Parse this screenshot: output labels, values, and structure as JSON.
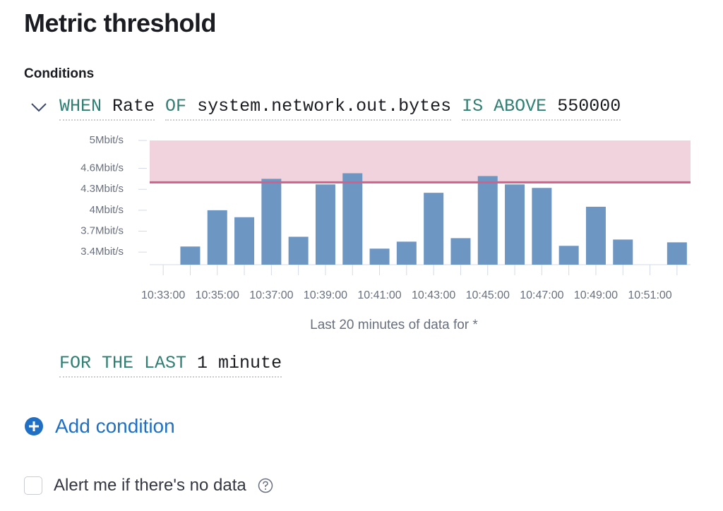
{
  "header": {
    "title": "Metric threshold"
  },
  "section_label": "Conditions",
  "condition": {
    "when": "WHEN",
    "aggregation": "Rate",
    "of": "OF",
    "metric": "system.network.out.bytes",
    "comparator": "IS ABOVE",
    "threshold": "550000"
  },
  "chart_data": {
    "type": "bar",
    "categories": [
      "10:33:00",
      null,
      "10:35:00",
      null,
      "10:37:00",
      null,
      "10:39:00",
      null,
      "10:41:00",
      null,
      "10:43:00",
      null,
      "10:45:00",
      null,
      "10:47:00",
      null,
      "10:49:00",
      null,
      "10:51:00",
      null
    ],
    "values": [
      null,
      3.48,
      4.0,
      3.9,
      4.45,
      3.62,
      4.37,
      4.53,
      3.45,
      3.55,
      4.25,
      3.6,
      4.49,
      4.37,
      4.32,
      3.49,
      4.05,
      3.58,
      null,
      3.54
    ],
    "color": "#6d96c3",
    "threshold": 4.4,
    "threshold_color": "#d2618a",
    "threshold_fill": "#f1d3de",
    "ylim": [
      3.22,
      5
    ],
    "yticks": [
      {
        "value": 5,
        "label": "5Mbit/s"
      },
      {
        "value": 4.6,
        "label": "4.6Mbit/s"
      },
      {
        "value": 4.3,
        "label": "4.3Mbit/s"
      },
      {
        "value": 4,
        "label": "4Mbit/s"
      },
      {
        "value": 3.7,
        "label": "3.7Mbit/s"
      },
      {
        "value": 3.4,
        "label": "3.4Mbit/s"
      }
    ],
    "x_label": "Last 20 minutes of data for *"
  },
  "duration": {
    "prefix": "FOR THE LAST",
    "value": "1 minute"
  },
  "add_condition": "Add condition",
  "no_data_checkbox": "Alert me if there's no data"
}
